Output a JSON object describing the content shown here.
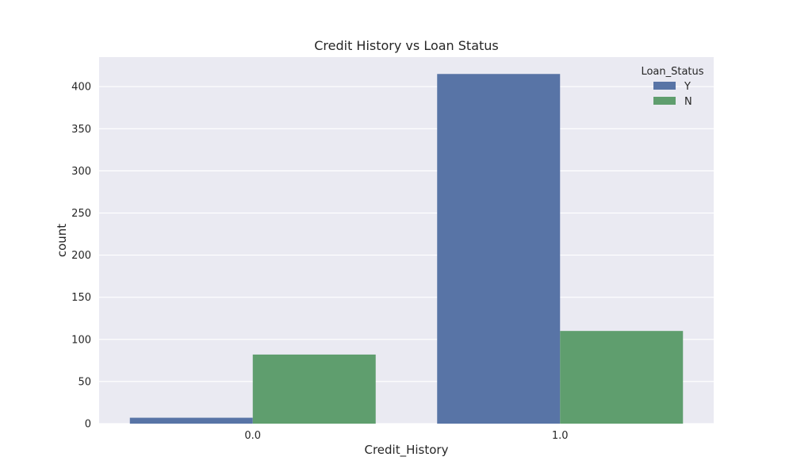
{
  "chart_data": {
    "type": "bar",
    "title": "Credit History vs Loan Status",
    "xlabel": "Credit_History",
    "ylabel": "count",
    "categories": [
      "0.0",
      "1.0"
    ],
    "series": [
      {
        "name": "Y",
        "values": [
          7,
          415
        ],
        "color": "#5874a6"
      },
      {
        "name": "N",
        "values": [
          82,
          110
        ],
        "color": "#5f9e6e"
      }
    ],
    "ylim": [
      0,
      435
    ],
    "yticks": [
      0,
      50,
      100,
      150,
      200,
      250,
      300,
      350,
      400
    ],
    "grid": true,
    "legend": {
      "title": "Loan_Status",
      "placement": "top-right"
    },
    "colors": {
      "plot_background": "#eaeaf2",
      "grid": "#ffffff"
    }
  }
}
